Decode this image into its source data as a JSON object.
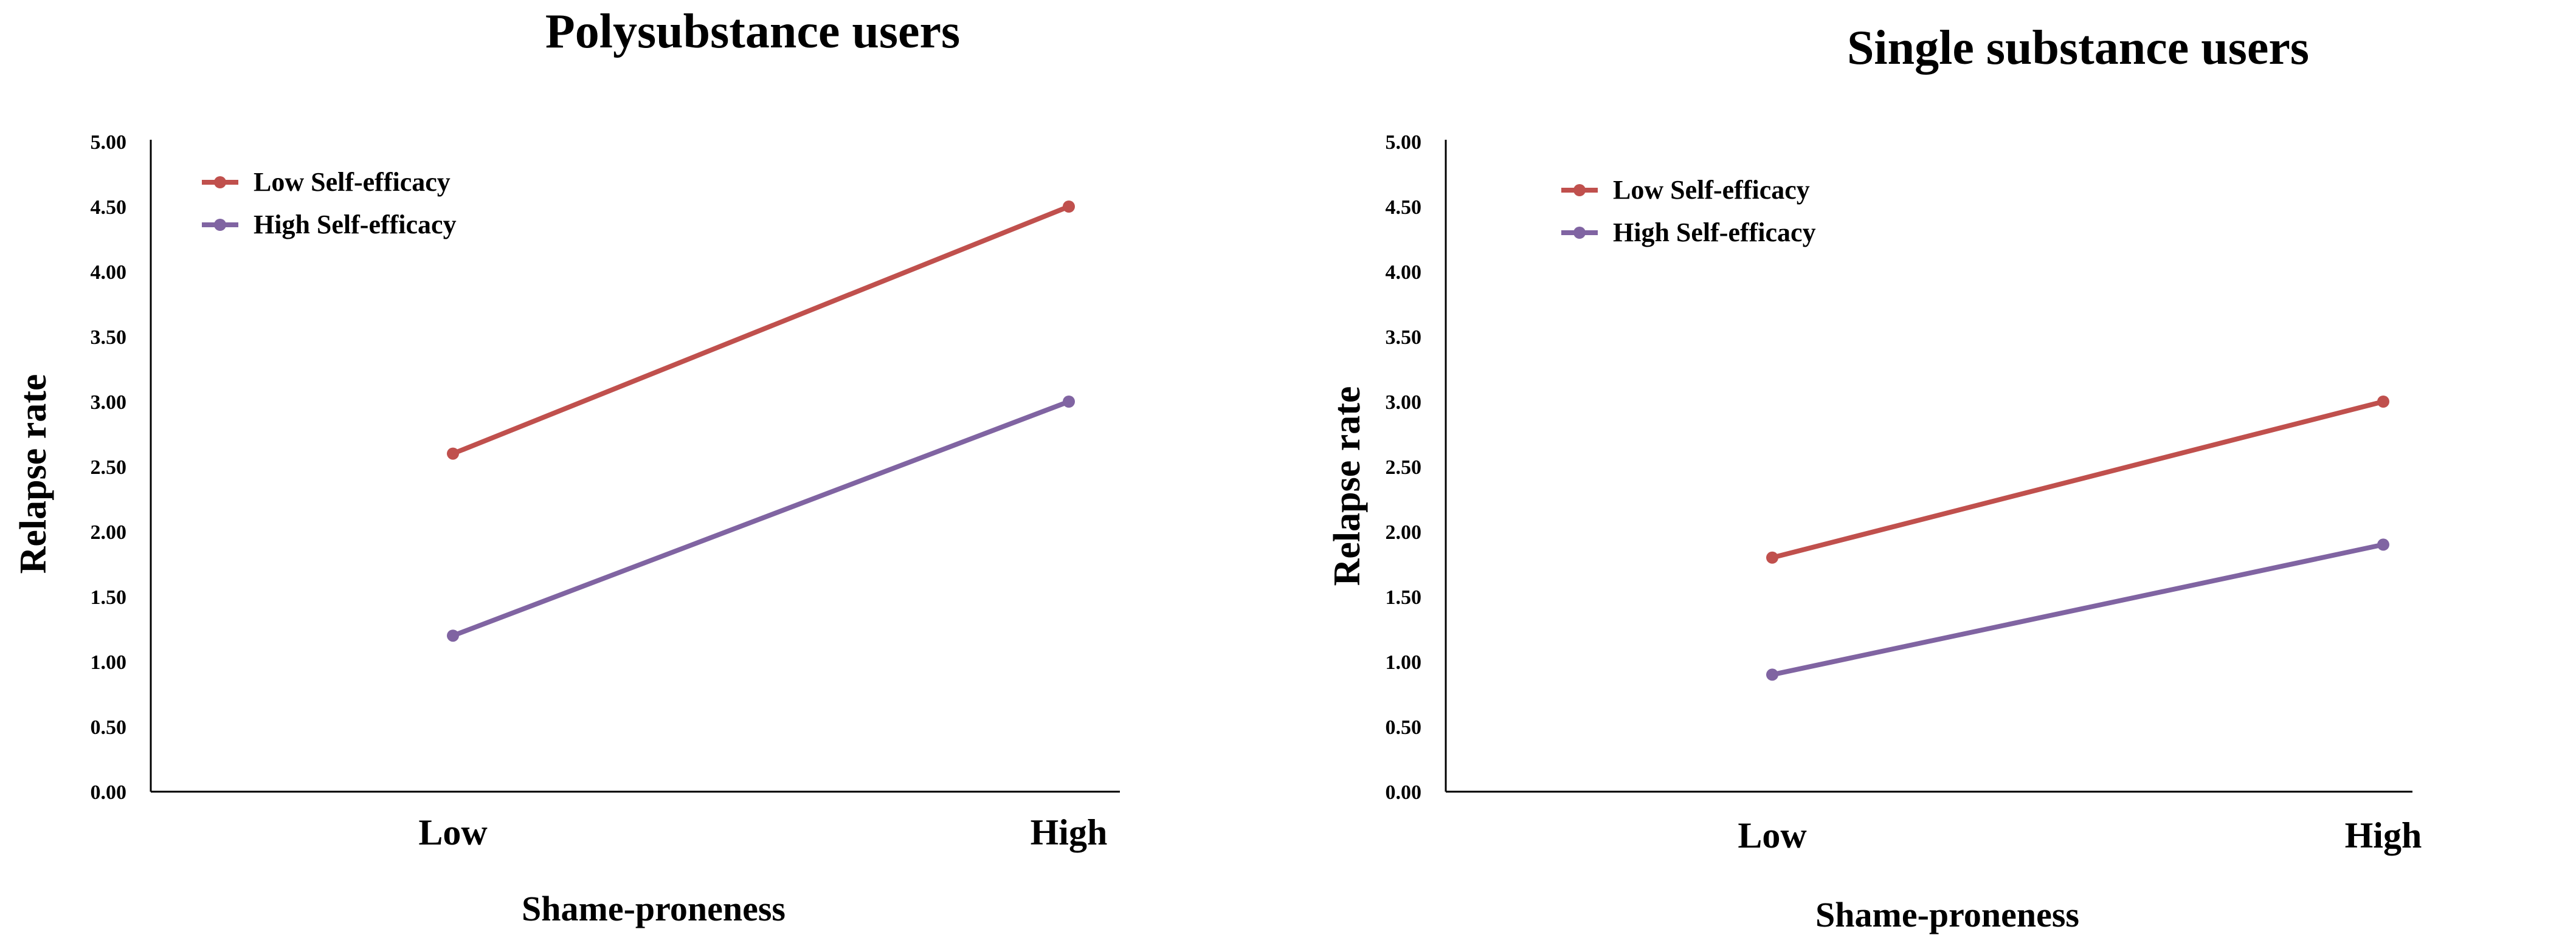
{
  "chart_data": [
    {
      "type": "line",
      "title": "Polysubstance users",
      "xlabel": "Shame-proneness",
      "ylabel": "Relapse rate",
      "categories": [
        "Low",
        "High"
      ],
      "ylim": [
        0,
        5
      ],
      "y_ticks": [
        "0.00",
        "0.50",
        "1.00",
        "1.50",
        "2.00",
        "2.50",
        "3.00",
        "3.50",
        "4.00",
        "4.50",
        "5.00"
      ],
      "legend_position": "top-left",
      "grid": false,
      "series": [
        {
          "name": "Low Self-efficacy",
          "color": "#C0504D",
          "values": [
            2.6,
            4.5
          ]
        },
        {
          "name": "High Self-efficacy",
          "color": "#8064A2",
          "values": [
            1.2,
            3.0
          ]
        }
      ]
    },
    {
      "type": "line",
      "title": "Single substance users",
      "xlabel": "Shame-proneness",
      "ylabel": "Relapse rate",
      "categories": [
        "Low",
        "High"
      ],
      "ylim": [
        0,
        5
      ],
      "y_ticks": [
        "0.00",
        "0.50",
        "1.00",
        "1.50",
        "2.00",
        "2.50",
        "3.00",
        "3.50",
        "4.00",
        "4.50",
        "5.00"
      ],
      "legend_position": "top-left",
      "grid": false,
      "series": [
        {
          "name": "Low Self-efficacy",
          "color": "#C0504D",
          "values": [
            1.8,
            3.0
          ]
        },
        {
          "name": "High Self-efficacy",
          "color": "#8064A2",
          "values": [
            0.9,
            1.9
          ]
        }
      ]
    }
  ]
}
